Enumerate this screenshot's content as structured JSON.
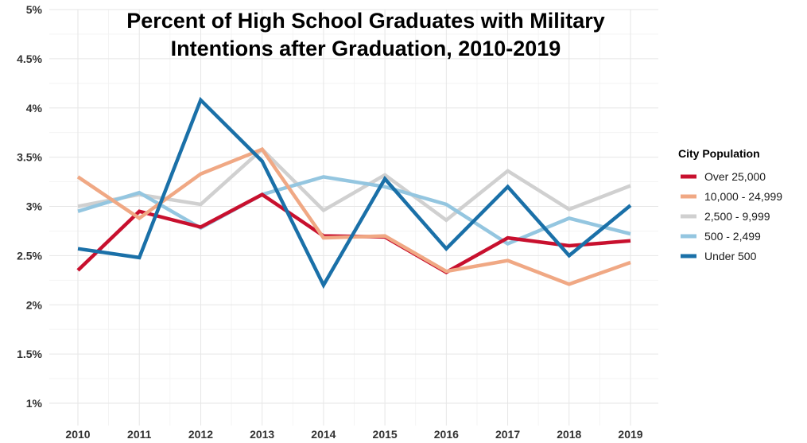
{
  "chart_data": {
    "type": "line",
    "title_lines": [
      "Percent of High School Graduates with Military",
      "Intentions after Graduation, 2010-2019"
    ],
    "xlabel": "",
    "ylabel": "",
    "x": [
      2010,
      2011,
      2012,
      2013,
      2014,
      2015,
      2016,
      2017,
      2018,
      2019
    ],
    "x_tick_labels": [
      "2010",
      "2011",
      "2012",
      "2013",
      "2014",
      "2015",
      "2016",
      "2017",
      "2018",
      "2019"
    ],
    "ylim": [
      0.9,
      5.0
    ],
    "y_ticks": [
      1,
      1.5,
      2,
      2.5,
      3,
      3.5,
      4,
      4.5,
      5
    ],
    "y_tick_labels": [
      "1%",
      "1.5%",
      "2%",
      "2.5%",
      "3%",
      "3.5%",
      "4%",
      "4.5%",
      "5%"
    ],
    "grid": true,
    "legend": {
      "title": "City Population",
      "position": "right"
    },
    "series": [
      {
        "name": "2,500 - 9,999",
        "color": "#d0d0d0",
        "values": [
          3.0,
          3.12,
          3.02,
          3.58,
          2.96,
          3.32,
          2.86,
          3.36,
          2.97,
          3.21
        ]
      },
      {
        "name": "500 - 2,499",
        "color": "#94c6e0",
        "values": [
          2.95,
          3.14,
          2.78,
          3.12,
          3.3,
          3.2,
          3.02,
          2.62,
          2.88,
          2.72
        ]
      },
      {
        "name": "Over 25,000",
        "color": "#c8102e",
        "values": [
          2.35,
          2.95,
          2.79,
          3.12,
          2.7,
          2.69,
          2.33,
          2.68,
          2.6,
          2.65
        ]
      },
      {
        "name": "10,000 - 24,999",
        "color": "#f0a884",
        "values": [
          3.3,
          2.88,
          3.33,
          3.58,
          2.68,
          2.7,
          2.34,
          2.45,
          2.21,
          2.43
        ]
      },
      {
        "name": "Under 500",
        "color": "#1a70a8",
        "values": [
          2.57,
          2.48,
          4.08,
          3.46,
          2.2,
          3.28,
          2.57,
          3.2,
          2.5,
          3.01
        ]
      }
    ],
    "legend_order": [
      "Over 25,000",
      "10,000 - 24,999",
      "2,500 - 9,999",
      "500 - 2,499",
      "Under 500"
    ]
  }
}
